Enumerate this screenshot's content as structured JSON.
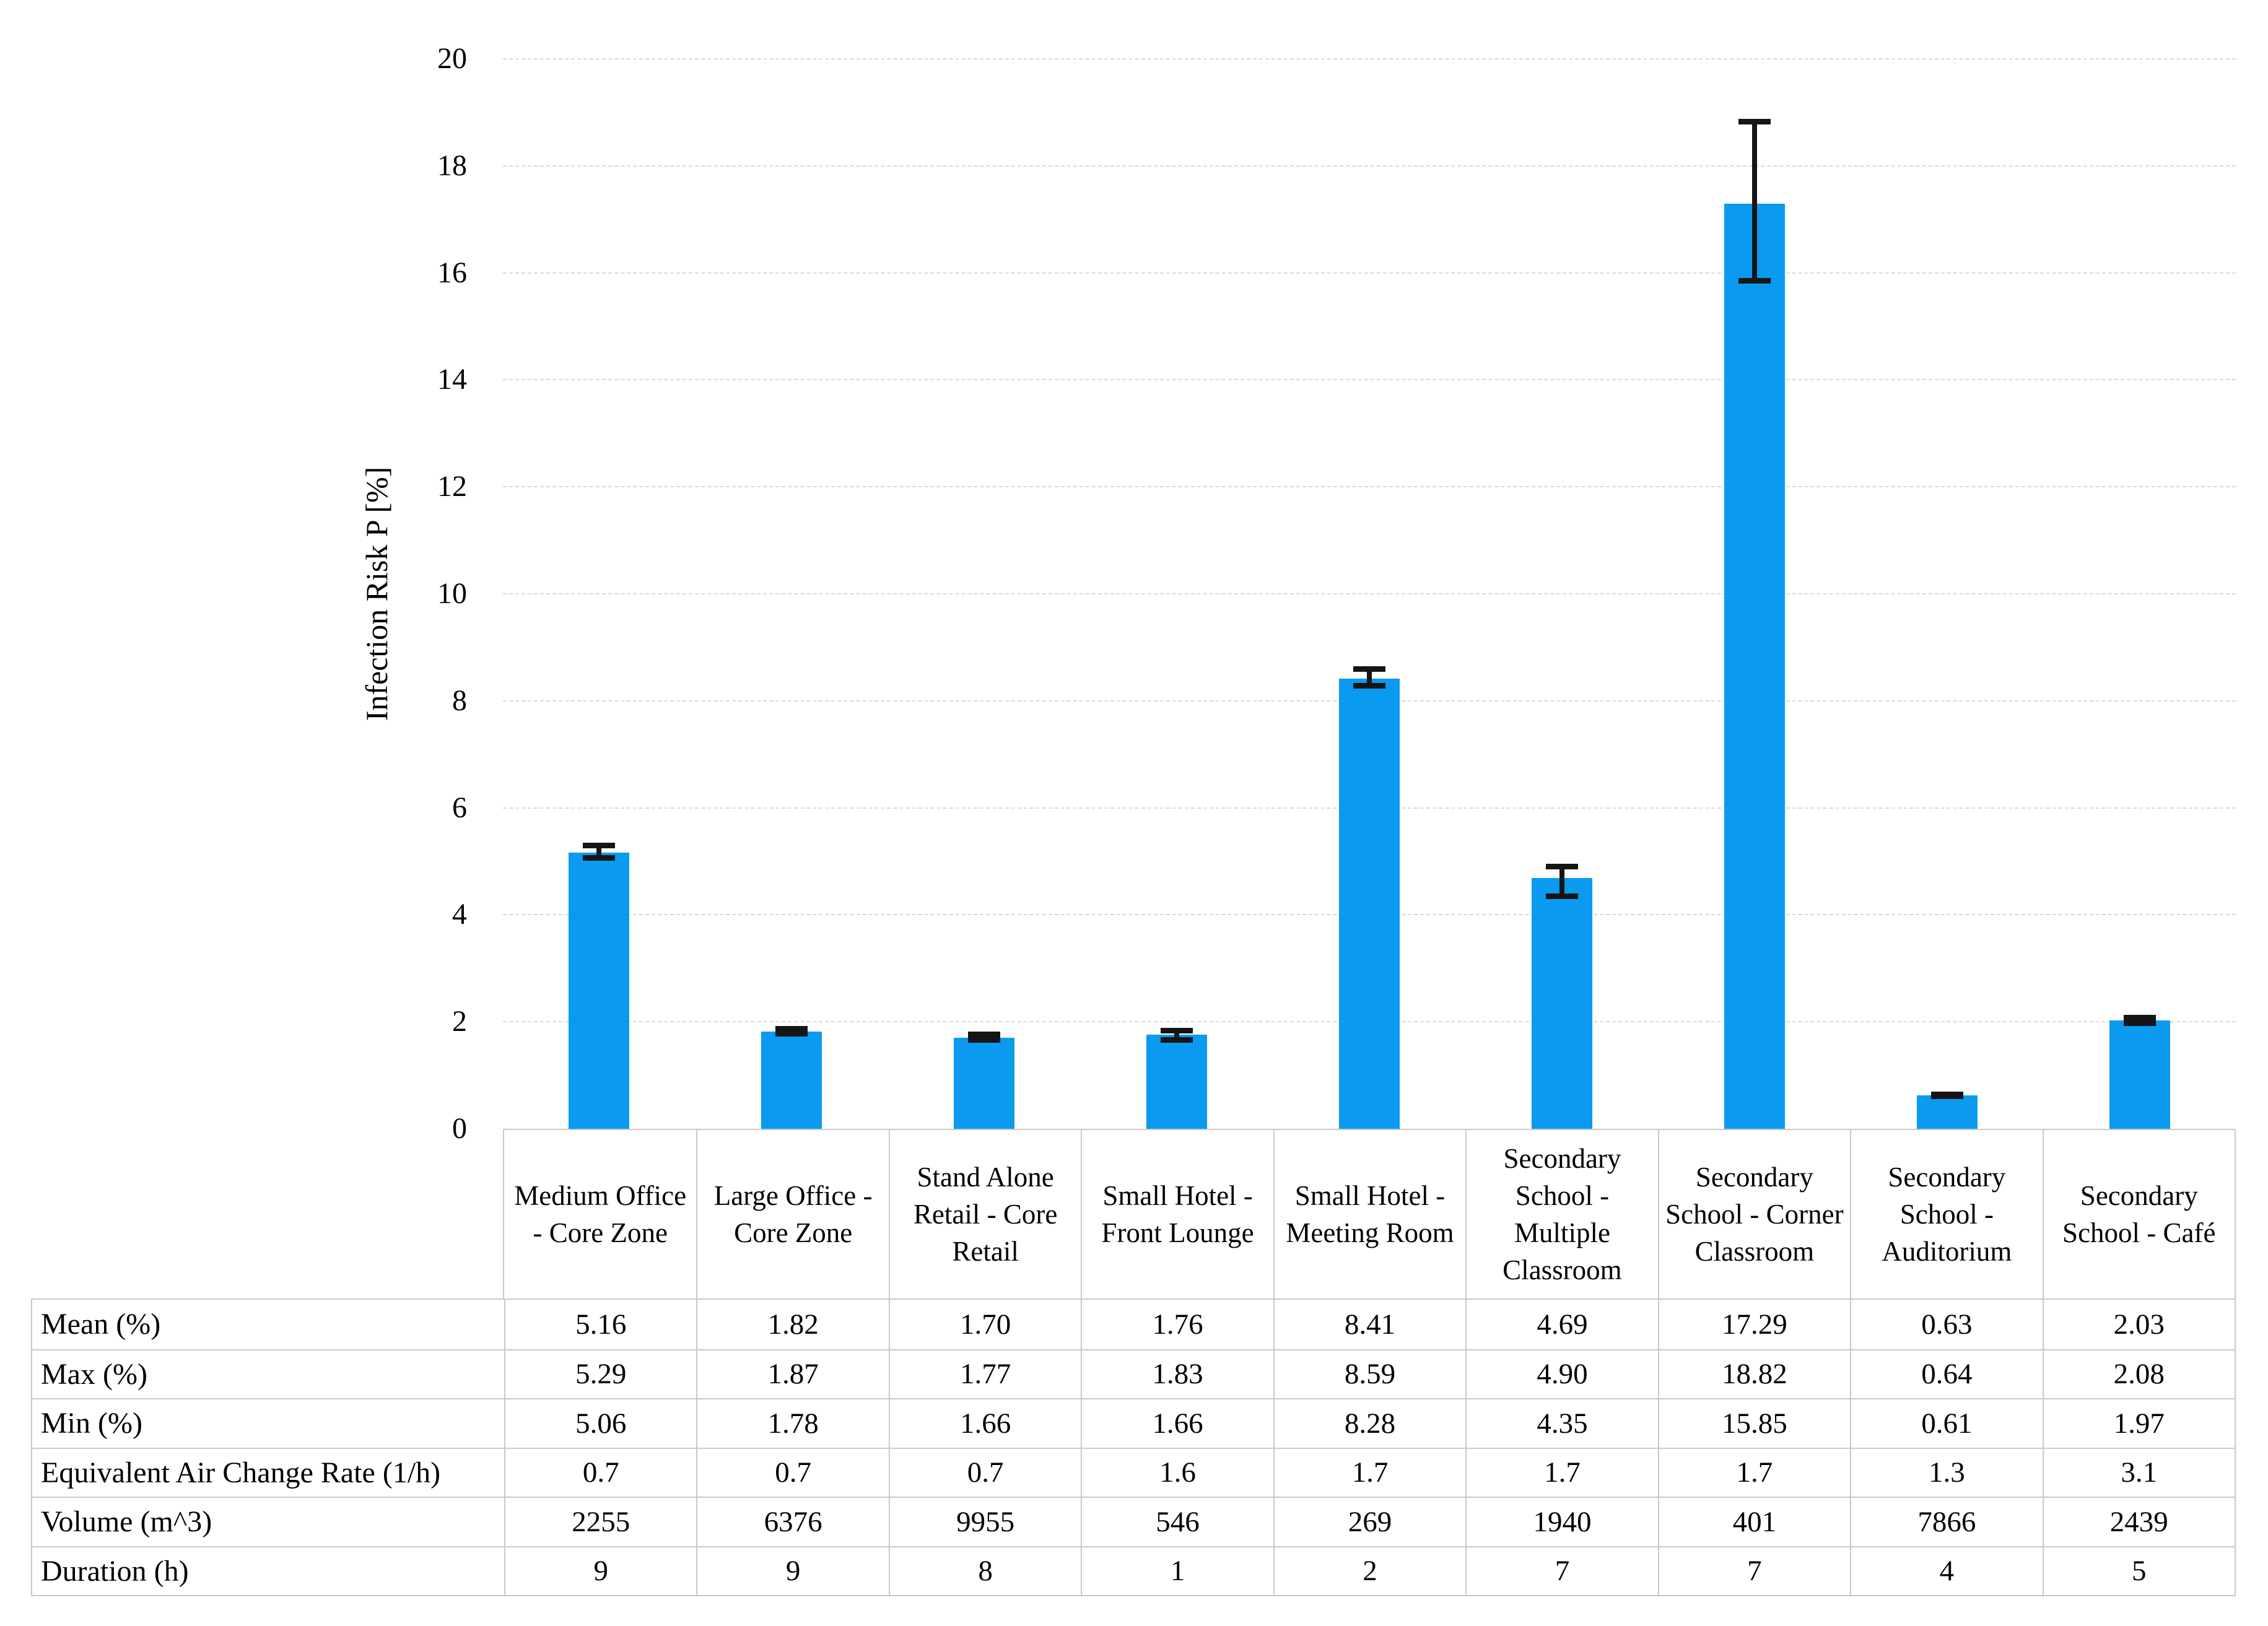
{
  "chart_data": {
    "type": "bar",
    "title": "",
    "ylabel": "Infection Risk P [%]",
    "xlabel": "",
    "ylim": [
      0,
      20
    ],
    "ytick_step": 2,
    "grid": true,
    "legend_position": "none",
    "categories": [
      "Medium Office - Core Zone",
      "Large Office - Core Zone",
      "Stand Alone Retail - Core Retail",
      "Small Hotel - Front Lounge",
      "Small Hotel - Meeting Room",
      "Secondary School - Multiple Classroom",
      "Secondary School - Corner Classroom",
      "Secondary School - Auditorium",
      "Secondary School - Café"
    ],
    "series": [
      {
        "name": "Mean Infection Risk (%)",
        "values": [
          5.16,
          1.82,
          1.7,
          1.76,
          8.41,
          4.69,
          17.29,
          0.63,
          2.03
        ]
      }
    ],
    "error_bars": {
      "max": [
        5.29,
        1.87,
        1.77,
        1.83,
        8.59,
        4.9,
        18.82,
        0.64,
        2.08
      ],
      "min": [
        5.06,
        1.78,
        1.66,
        1.66,
        8.28,
        4.35,
        15.85,
        0.61,
        1.97
      ]
    },
    "colors": {
      "bar": "#0a9af0",
      "grid": "#d9d9d9",
      "table_border": "#c9c9c9",
      "error_bar": "#151515"
    }
  },
  "table": {
    "rows": [
      {
        "label": "Mean (%)",
        "values": [
          "5.16",
          "1.82",
          "1.70",
          "1.76",
          "8.41",
          "4.69",
          "17.29",
          "0.63",
          "2.03"
        ]
      },
      {
        "label": "Max (%)",
        "values": [
          "5.29",
          "1.87",
          "1.77",
          "1.83",
          "8.59",
          "4.90",
          "18.82",
          "0.64",
          "2.08"
        ]
      },
      {
        "label": "Min (%)",
        "values": [
          "5.06",
          "1.78",
          "1.66",
          "1.66",
          "8.28",
          "4.35",
          "15.85",
          "0.61",
          "1.97"
        ]
      },
      {
        "label": "Equivalent Air Change Rate (1/h)",
        "values": [
          "0.7",
          "0.7",
          "0.7",
          "1.6",
          "1.7",
          "1.7",
          "1.7",
          "1.3",
          "3.1"
        ]
      },
      {
        "label": "Volume (m^3)",
        "values": [
          "2255",
          "6376",
          "9955",
          "546",
          "269",
          "1940",
          "401",
          "7866",
          "2439"
        ]
      },
      {
        "label": "Duration (h)",
        "values": [
          "9",
          "9",
          "8",
          "1",
          "2",
          "7",
          "7",
          "4",
          "5"
        ]
      }
    ]
  }
}
